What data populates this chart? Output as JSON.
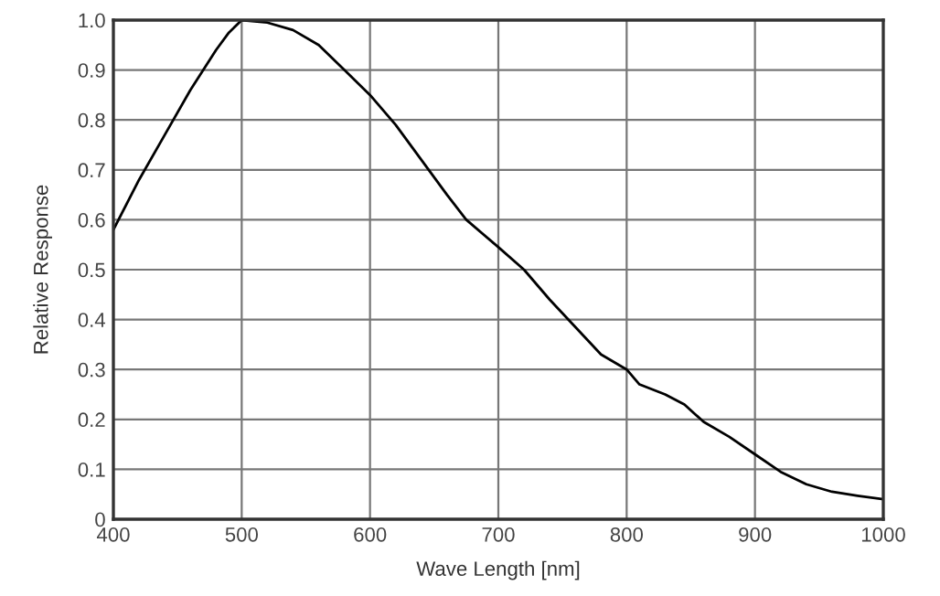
{
  "chart_data": {
    "type": "line",
    "xlabel": "Wave Length [nm]",
    "ylabel": "Relative Response",
    "x": [
      400,
      420,
      440,
      460,
      480,
      490,
      500,
      520,
      540,
      560,
      580,
      600,
      620,
      640,
      660,
      675,
      700,
      720,
      740,
      760,
      780,
      800,
      810,
      830,
      845,
      860,
      880,
      900,
      920,
      940,
      960,
      980,
      1000
    ],
    "series": [
      {
        "color": "#000000",
        "values": [
          0.58,
          0.68,
          0.77,
          0.86,
          0.94,
          0.975,
          1.0,
          0.995,
          0.98,
          0.95,
          0.9,
          0.85,
          0.79,
          0.72,
          0.65,
          0.6,
          0.545,
          0.5,
          0.44,
          0.385,
          0.33,
          0.3,
          0.27,
          0.25,
          0.23,
          0.195,
          0.165,
          0.13,
          0.095,
          0.07,
          0.055,
          0.047,
          0.04
        ]
      }
    ],
    "xlim": [
      400,
      1000
    ],
    "ylim": [
      0,
      1.0
    ],
    "xticks": [
      400,
      500,
      600,
      700,
      800,
      900,
      1000
    ],
    "yticks": [
      0,
      {
        "value": 0.1,
        "label": "0.1"
      },
      {
        "value": 0.2,
        "label": "0.2"
      },
      {
        "value": 0.3,
        "label": "0.3"
      },
      {
        "value": 0.4,
        "label": "0.4"
      },
      {
        "value": 0.5,
        "label": "0.5"
      },
      {
        "value": 0.6,
        "label": "0.6"
      },
      {
        "value": 0.7,
        "label": "0.7"
      },
      {
        "value": 0.8,
        "label": "0.8"
      },
      {
        "value": 0.9,
        "label": "0.9"
      },
      {
        "value": 1.0,
        "label": "1.0"
      }
    ],
    "grid": true
  }
}
